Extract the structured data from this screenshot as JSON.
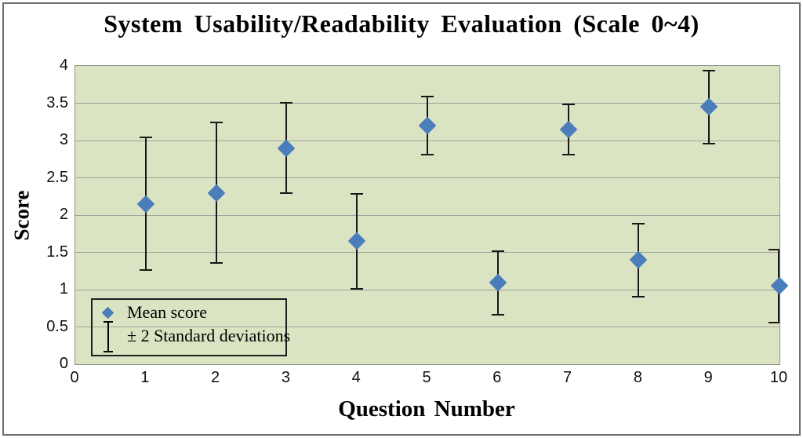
{
  "title": "System Usability/Readability Evaluation (Scale 0~4)",
  "y_axis": {
    "label": "Score",
    "ticks": [
      "4",
      "3.5",
      "3",
      "2.5",
      "2",
      "1.5",
      "1",
      "0.5",
      "0"
    ]
  },
  "x_axis": {
    "label": "Question Number",
    "ticks": [
      "0",
      "1",
      "2",
      "3",
      "4",
      "5",
      "6",
      "7",
      "8",
      "9",
      "10"
    ]
  },
  "legend": {
    "items": [
      {
        "icon": "diamond",
        "label": "Mean score"
      },
      {
        "icon": "error-bar",
        "label": "± 2 Standard deviations"
      }
    ]
  },
  "chart_data": {
    "type": "scatter",
    "title": "System Usability/Readability Evaluation (Scale 0~4)",
    "xlabel": "Question Number",
    "ylabel": "Score",
    "xlim": [
      0,
      10
    ],
    "ylim": [
      0,
      4
    ],
    "grid": true,
    "gridline_step": 0.5,
    "legend_position": "bottom-left",
    "series": [
      {
        "name": "Mean score",
        "marker": "diamond",
        "x": [
          1,
          2,
          3,
          4,
          5,
          6,
          7,
          8,
          9,
          10
        ],
        "y": [
          2.15,
          2.3,
          2.9,
          1.65,
          3.2,
          1.1,
          3.15,
          1.4,
          3.45,
          1.05
        ],
        "error_upper": [
          3.05,
          3.25,
          3.52,
          2.3,
          3.6,
          1.53,
          3.5,
          1.9,
          3.95,
          1.55
        ],
        "error_lower": [
          1.25,
          1.35,
          2.28,
          1.0,
          2.8,
          0.65,
          2.8,
          0.9,
          2.95,
          0.55
        ],
        "error_label": "± 2 Standard deviations"
      }
    ]
  },
  "colors": {
    "marker": "#4a7ebb",
    "plot_background": "#dbe4c2",
    "gridline": "#a0a39a",
    "error_bar": "#181818",
    "frame_border": "#6f6f6f",
    "text": "#000000"
  }
}
